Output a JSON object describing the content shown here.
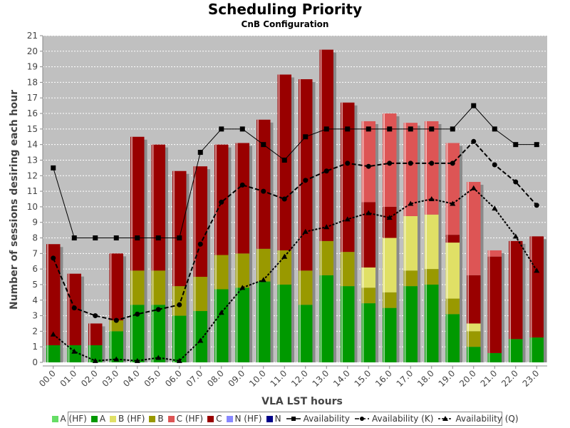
{
  "chart_data": {
    "type": "bar",
    "title": "Scheduling Priority",
    "subtitle": "CnB Configuration",
    "xlabel": "VLA LST hours",
    "ylabel": "Number of sessions desiring each hour",
    "ylim": [
      0,
      21
    ],
    "yticks": [
      0,
      1,
      2,
      3,
      4,
      5,
      6,
      7,
      8,
      9,
      10,
      11,
      12,
      13,
      14,
      15,
      16,
      17,
      18,
      19,
      20,
      21
    ],
    "categories": [
      "00.0",
      "01.0",
      "02.0",
      "03.0",
      "04.0",
      "05.0",
      "06.0",
      "07.0",
      "08.0",
      "09.0",
      "10.0",
      "11.0",
      "12.0",
      "13.0",
      "14.0",
      "15.0",
      "16.0",
      "17.0",
      "18.0",
      "19.0",
      "20.0",
      "21.0",
      "22.0",
      "23.0"
    ],
    "stacked": true,
    "series": [
      {
        "name": "A",
        "color": "#009900",
        "values": [
          1.1,
          1.1,
          1.1,
          2.0,
          3.7,
          3.7,
          3.0,
          3.3,
          4.7,
          4.8,
          5.2,
          5.0,
          3.7,
          5.6,
          4.9,
          3.8,
          3.5,
          4.9,
          5.0,
          3.1,
          1.0,
          0.6,
          1.5,
          1.6
        ]
      },
      {
        "name": "A (HF)",
        "color": "#66dd66",
        "values": [
          0,
          0,
          0,
          0,
          0,
          0,
          0,
          0,
          0,
          0,
          0,
          0,
          0,
          0,
          0,
          0,
          0,
          0,
          0,
          0,
          0,
          0,
          0,
          0
        ]
      },
      {
        "name": "B",
        "color": "#999900",
        "values": [
          0,
          0,
          0,
          0.7,
          2.2,
          2.2,
          1.9,
          2.2,
          2.2,
          2.2,
          2.1,
          2.2,
          2.2,
          2.2,
          2.2,
          1.0,
          1.0,
          1.0,
          1.0,
          1.0,
          1.0,
          0,
          0,
          0
        ]
      },
      {
        "name": "B (HF)",
        "color": "#e0e066",
        "values": [
          0,
          0,
          0,
          0,
          0,
          0,
          0,
          0,
          0,
          0,
          0,
          0,
          0,
          0,
          0,
          1.3,
          3.5,
          3.5,
          3.5,
          3.6,
          0.5,
          0,
          0,
          0
        ]
      },
      {
        "name": "C",
        "color": "#990000",
        "values": [
          6.5,
          4.6,
          1.4,
          4.3,
          8.6,
          8.1,
          7.4,
          7.1,
          7.1,
          7.1,
          8.3,
          11.3,
          12.3,
          12.3,
          9.6,
          4.2,
          2.0,
          0,
          0,
          0.5,
          3.1,
          6.2,
          6.3,
          6.5
        ]
      },
      {
        "name": "C (HF)",
        "color": "#dd5555",
        "values": [
          0,
          0,
          0,
          0,
          0,
          0,
          0,
          0,
          0,
          0,
          0,
          0,
          0,
          0,
          0,
          5.2,
          6.0,
          6.0,
          6.0,
          5.9,
          6.0,
          0.4,
          0,
          0
        ]
      },
      {
        "name": "N (HF)",
        "color": "#8888ff",
        "values": [
          0,
          0,
          0,
          0,
          0,
          0,
          0,
          0,
          0,
          0,
          0,
          0,
          0,
          0,
          0,
          0,
          0,
          0,
          0,
          0,
          0,
          0,
          0,
          0
        ]
      },
      {
        "name": "N",
        "color": "#000088",
        "values": [
          0,
          0,
          0,
          0,
          0,
          0,
          0,
          0,
          0,
          0,
          0,
          0,
          0,
          0,
          0,
          0,
          0,
          0,
          0,
          0,
          0,
          0,
          0,
          0
        ]
      }
    ],
    "lines": [
      {
        "name": "Availability",
        "marker": "square",
        "dash": "solid",
        "values": [
          12.5,
          8,
          8,
          8,
          8,
          8,
          8,
          13.5,
          15,
          15,
          14,
          13,
          14.5,
          15,
          15,
          15,
          15,
          15,
          15,
          15,
          16.5,
          15,
          14,
          14
        ]
      },
      {
        "name": "Availability (K)",
        "marker": "circle",
        "dash": "long",
        "values": [
          6.7,
          3.5,
          3.0,
          2.7,
          3.1,
          3.4,
          3.7,
          7.6,
          10.3,
          11.4,
          11.0,
          10.5,
          11.7,
          12.3,
          12.8,
          12.6,
          12.8,
          12.8,
          12.8,
          12.8,
          14.2,
          12.7,
          11.6,
          10.1
        ]
      },
      {
        "name": "Availability (Q)",
        "marker": "triangle",
        "dash": "short",
        "values": [
          1.8,
          0.7,
          0.1,
          0.2,
          0.1,
          0.3,
          0.1,
          1.4,
          3.2,
          4.8,
          5.3,
          6.8,
          8.4,
          8.7,
          9.2,
          9.6,
          9.3,
          10.2,
          10.5,
          10.2,
          11.2,
          9.9,
          8.1,
          5.9
        ]
      }
    ],
    "legend": [
      {
        "label": "A (HF)",
        "kind": "box",
        "color": "#66dd66"
      },
      {
        "label": "A",
        "kind": "box",
        "color": "#009900"
      },
      {
        "label": "B (HF)",
        "kind": "box",
        "color": "#e0e066"
      },
      {
        "label": "B",
        "kind": "box",
        "color": "#999900"
      },
      {
        "label": "C (HF)",
        "kind": "box",
        "color": "#dd5555"
      },
      {
        "label": "C",
        "kind": "box",
        "color": "#990000"
      },
      {
        "label": "N (HF)",
        "kind": "box",
        "color": "#8888ff"
      },
      {
        "label": "N",
        "kind": "box",
        "color": "#000088"
      },
      {
        "label": "Availability",
        "kind": "line",
        "marker": "square",
        "dash": "solid"
      },
      {
        "label": "Availability (K)",
        "kind": "line",
        "marker": "circle",
        "dash": "long"
      },
      {
        "label": "Availability (Q)",
        "kind": "line",
        "marker": "triangle",
        "dash": "short"
      }
    ],
    "legend_position": "bottom",
    "grid": true,
    "plot_background": "#c0c0c0"
  }
}
